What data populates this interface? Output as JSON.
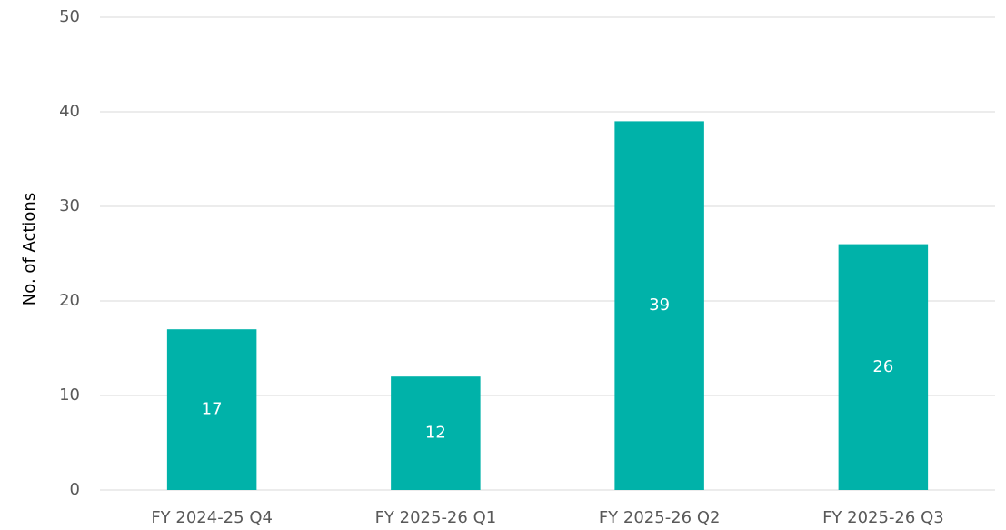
{
  "chart_data": {
    "type": "bar",
    "y_axis_label": "No. of Actions",
    "categories": [
      "FY 2024-25 Q4",
      "FY 2025-26 Q1",
      "FY 2025-26 Q2",
      "FY 2025-26 Q3"
    ],
    "values": [
      17,
      12,
      39,
      26
    ],
    "color": "#00b2a9",
    "ylim": [
      0,
      50
    ],
    "yticks": [
      0,
      10,
      20,
      30,
      40,
      50
    ],
    "grid": true,
    "data_labels": true
  }
}
